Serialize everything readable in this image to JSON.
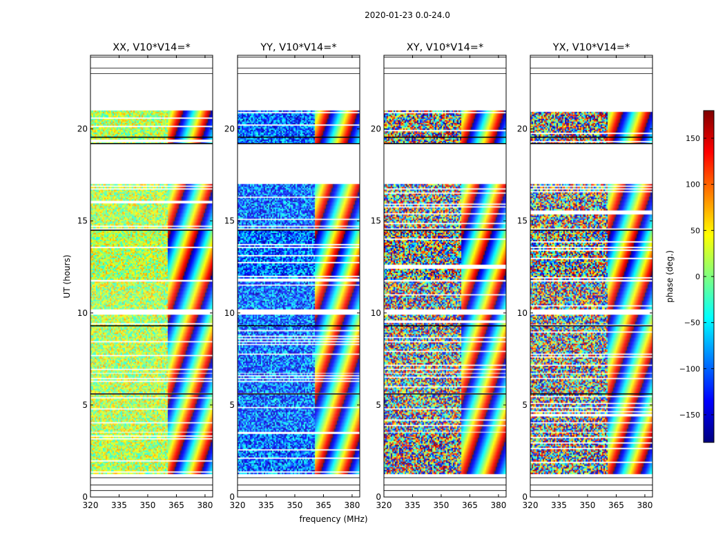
{
  "chart_data": {
    "type": "heatmap",
    "title": "2020-01-23 0.0-24.0",
    "xlabel": "frequency (MHz)",
    "ylabel": "UT (hours)",
    "xlim": [
      320,
      384
    ],
    "ylim": [
      0,
      24
    ],
    "xticks": [
      320,
      335,
      350,
      365,
      380
    ],
    "yticks": [
      0,
      5,
      10,
      15,
      20
    ],
    "colorbar": {
      "label": "phase (deg.)",
      "range": [
        -180,
        180
      ],
      "ticks": [
        150,
        100,
        50,
        0,
        -50,
        -100,
        -150
      ],
      "tick_labels": [
        "150",
        "100",
        "50",
        "0",
        "−50",
        "−100",
        "−150"
      ],
      "colormap": "jet",
      "colors": [
        "#00007f",
        "#0000ff",
        "#007fff",
        "#00ffff",
        "#7fff7f",
        "#ffff00",
        "#ff7f00",
        "#ff0000",
        "#7f0000"
      ]
    },
    "data_ut_bands": [
      [
        1.3,
        3.5
      ],
      [
        3.6,
        6.7
      ],
      [
        6.8,
        9.9
      ],
      [
        10.2,
        11.7
      ],
      [
        11.8,
        14.5
      ],
      [
        14.6,
        17.0
      ],
      [
        19.2,
        21.0
      ]
    ],
    "thick_gap_lines_ut": [
      5.6,
      9.3,
      14.5,
      19.2,
      19.55
    ],
    "panels": [
      {
        "title": "XX, V10*V14=*",
        "pol": "XX",
        "mean_phase": 20,
        "scatter": 60
      },
      {
        "title": "YY, V10*V14=*",
        "pol": "YY",
        "mean_phase": -100,
        "scatter": 70
      },
      {
        "title": "XY, V10*V14=*",
        "pol": "XY",
        "mean_phase": 0,
        "scatter": 180
      },
      {
        "title": "YX, V10*V14=*",
        "pol": "YX",
        "mean_phase": 0,
        "scatter": 180
      }
    ]
  }
}
